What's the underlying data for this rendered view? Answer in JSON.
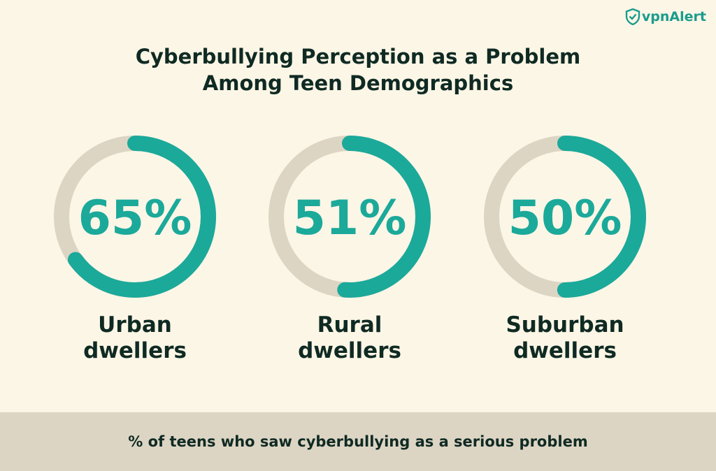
{
  "brand": {
    "name": "vpnAlert",
    "icon": "shield-icon"
  },
  "title_line1": "Cyberbullying Perception as a Problem",
  "title_line2": "Among Teen Demographics",
  "colors": {
    "accent": "#1ba99a",
    "track": "#ddd5c4",
    "text": "#0f2a23",
    "background": "#fcf6e6"
  },
  "chart_data": {
    "type": "pie",
    "unit": "%",
    "categories": [
      "Urban dwellers",
      "Rural dwellers",
      "Suburban dwellers"
    ],
    "values": [
      65,
      51,
      50
    ],
    "value_labels": [
      "65%",
      "51%",
      "50%"
    ],
    "label_lines": [
      [
        "Urban",
        "dwellers"
      ],
      [
        "Rural",
        "dwellers"
      ],
      [
        "Suburban",
        "dwellers"
      ]
    ]
  },
  "footer_text": "% of teens who saw cyberbullying as a serious problem"
}
